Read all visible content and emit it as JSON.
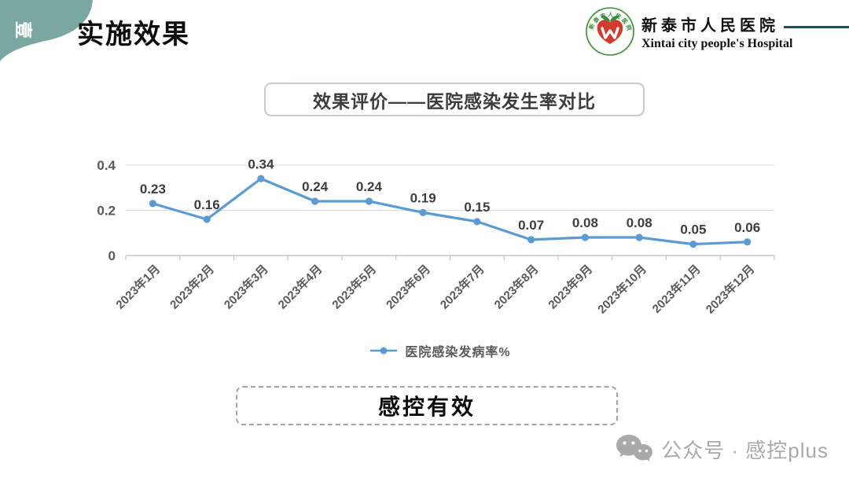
{
  "header": {
    "section_number": "壹",
    "title": "实施效果",
    "hospital": {
      "name_cn": "新泰市人民医院",
      "name_en": "Xintai city people's Hospital",
      "logo_arc_text": "新泰市人民医院"
    }
  },
  "chart_section": {
    "box_title": "效果评价——医院感染发生率对比"
  },
  "chart_data": {
    "type": "line",
    "title": "效果评价——医院感染发生率对比",
    "categories": [
      "2023年1月",
      "2023年2月",
      "2023年3月",
      "2023年4月",
      "2023年5月",
      "2023年6月",
      "2023年7月",
      "2023年8月",
      "2023年9月",
      "2023年10月",
      "2023年11月",
      "2023年12月"
    ],
    "series": [
      {
        "name": "医院感染发病率%",
        "values": [
          0.23,
          0.16,
          0.34,
          0.24,
          0.24,
          0.19,
          0.15,
          0.07,
          0.08,
          0.08,
          0.05,
          0.06
        ]
      }
    ],
    "xlabel": "",
    "ylabel": "",
    "ylim": [
      0,
      0.4
    ],
    "yticks": [
      0,
      0.2,
      0.4
    ],
    "grid": true,
    "legend_position": "bottom",
    "line_color": "#5b9bd5",
    "label_color": "#3d3d3d",
    "axis_color": "#595959"
  },
  "conclusion": {
    "label": "感控有效"
  },
  "watermark": {
    "text": "公众号 · 感控plus",
    "icon": "wechat-icon"
  },
  "colors": {
    "corner_tab": "#7ba7a3",
    "accent_line": "#5b9bd5",
    "title_box_border": "#c5cec3",
    "dashed_border": "#a3a3a3",
    "header_rule": "#1f4f63",
    "watermark_gray": "#a9a9a9",
    "logo_green": "#3a8a3a",
    "logo_red": "#d23b2f"
  }
}
